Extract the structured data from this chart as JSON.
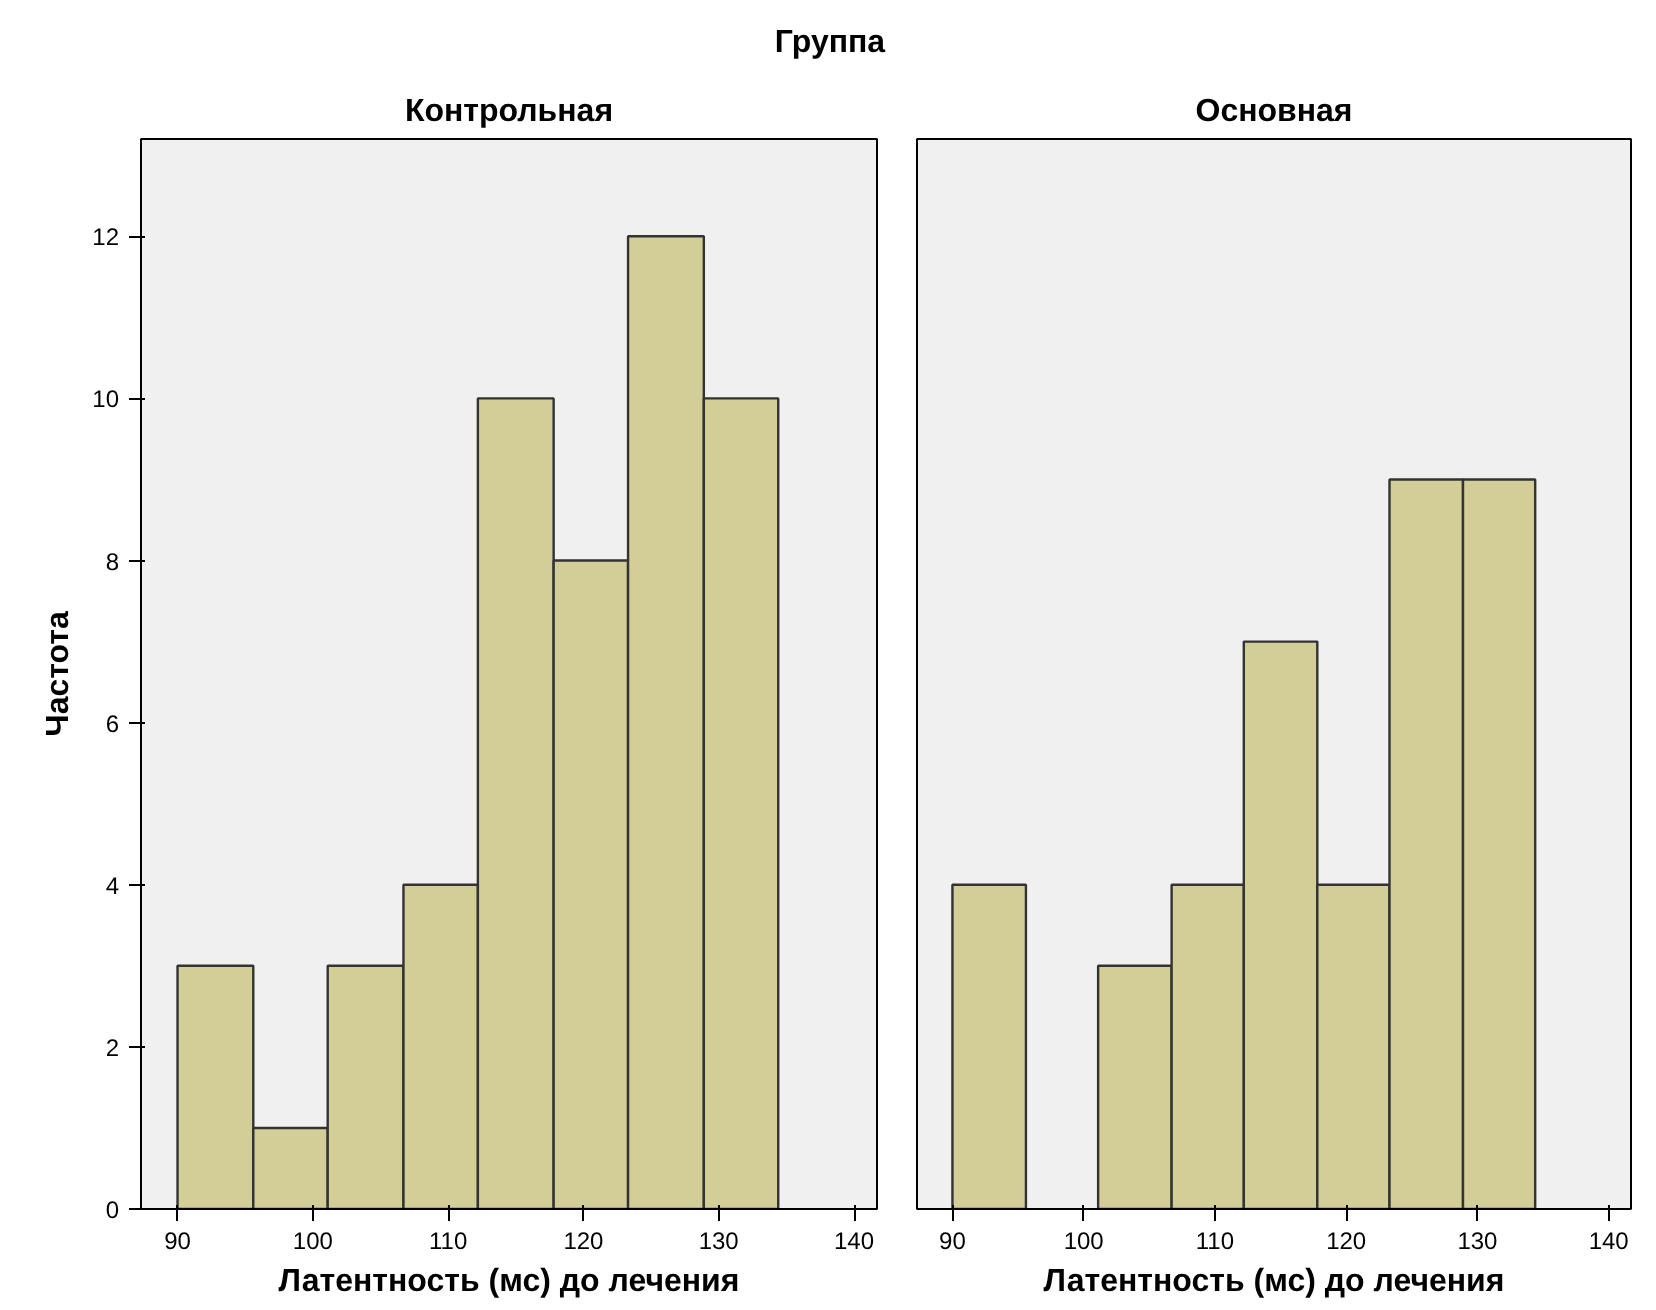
{
  "chart_data": [
    {
      "type": "histogram",
      "annotations": [
        "Группа"
      ],
      "title": "Контрольная",
      "xlabel": "Латентность (мс) до лечения",
      "ylabel": "Частота",
      "bins": [
        90,
        95.6,
        101.1,
        106.7,
        112.2,
        117.8,
        123.3,
        128.9,
        134.4
      ],
      "values": [
        3,
        1,
        3,
        4,
        10,
        8,
        12,
        10
      ],
      "color": "#d3ce98",
      "xlim": [
        87.3,
        141.7
      ],
      "xticks": [
        90,
        100,
        110,
        120,
        130,
        140
      ],
      "ylim": [
        0,
        13.2
      ],
      "yticks": [
        0,
        2,
        4,
        6,
        8,
        10,
        12
      ],
      "grid": false
    },
    {
      "type": "histogram",
      "title": "Основная",
      "xlabel": "Латентность (мс) до лечения",
      "bins": [
        90,
        95.6,
        101.1,
        106.7,
        112.2,
        117.8,
        123.3,
        128.9,
        134.4
      ],
      "values": [
        4,
        0,
        3,
        4,
        7,
        4,
        9,
        9
      ],
      "color": "#d3ce98",
      "xlim": [
        87.3,
        141.7
      ],
      "xticks": [
        90,
        100,
        110,
        120,
        130,
        140
      ],
      "ylim": [
        0,
        13.2
      ],
      "yticks": [
        0,
        2,
        4,
        6,
        8,
        10,
        12
      ],
      "tick_labels": "x",
      "grid": false
    }
  ]
}
